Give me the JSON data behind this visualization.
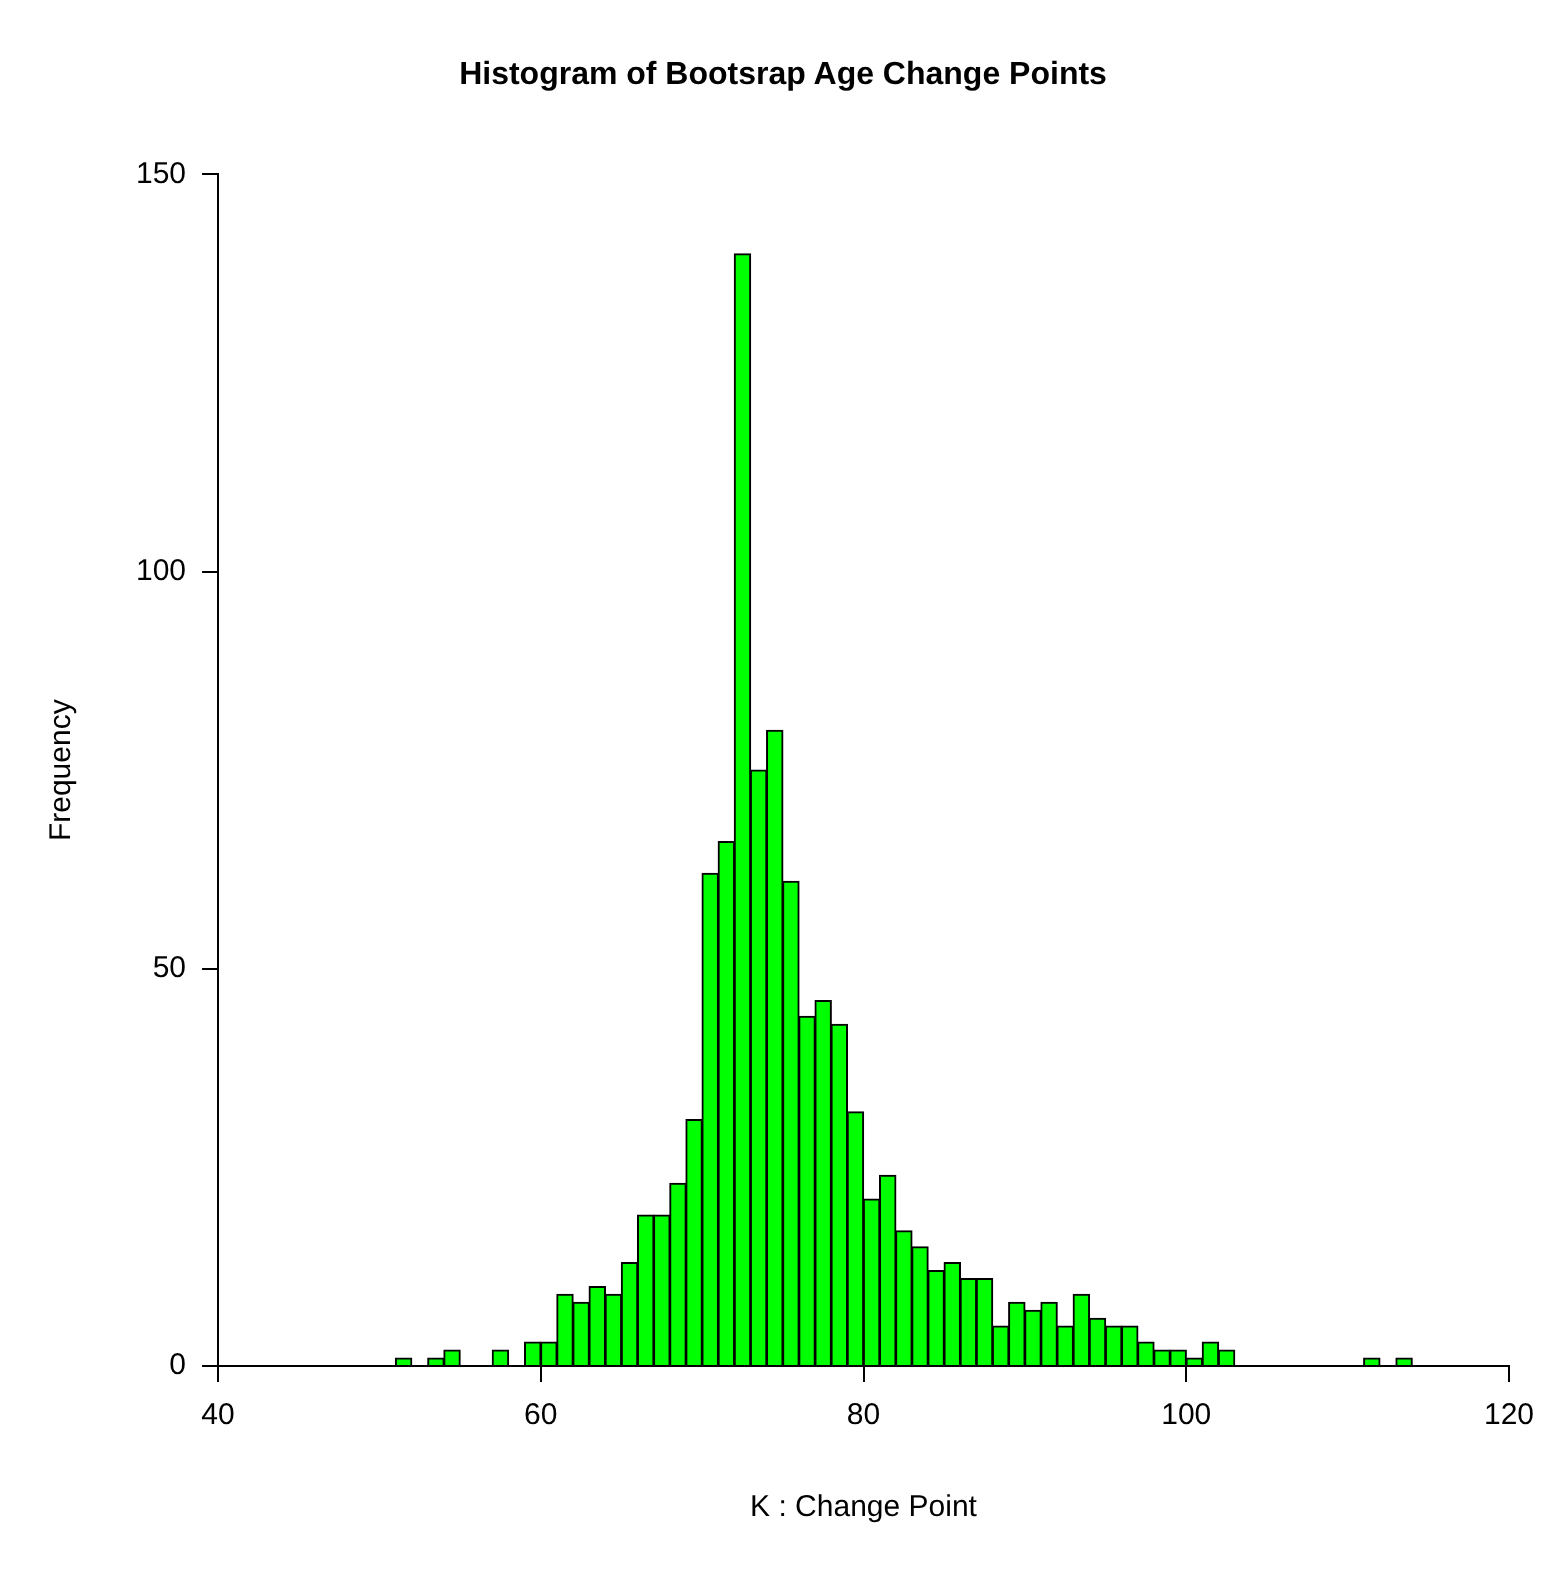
{
  "chart_data": {
    "type": "histogram",
    "title": "Histogram of Bootsrap Age Change Points",
    "xlabel": "K : Change Point",
    "ylabel": "Frequency",
    "bins": [
      51,
      52,
      53,
      54,
      55,
      56,
      57,
      58,
      59,
      60,
      61,
      62,
      63,
      64,
      65,
      66,
      67,
      68,
      69,
      70,
      71,
      72,
      73,
      74,
      75,
      76,
      77,
      78,
      79,
      80,
      81,
      82,
      83,
      84,
      85,
      86,
      87,
      88,
      89,
      90,
      91,
      92,
      93,
      94,
      95,
      96,
      97,
      98,
      99,
      100,
      101,
      102,
      103,
      104,
      105,
      106,
      107,
      108,
      109,
      110,
      111,
      112,
      113,
      114
    ],
    "values": [
      1,
      0,
      1,
      2,
      0,
      0,
      2,
      0,
      3,
      3,
      9,
      8,
      10,
      9,
      13,
      19,
      19,
      23,
      31,
      62,
      66,
      140,
      75,
      80,
      61,
      44,
      46,
      43,
      32,
      21,
      24,
      17,
      15,
      12,
      13,
      11,
      11,
      5,
      8,
      7,
      8,
      5,
      9,
      6,
      5,
      5,
      3,
      2,
      2,
      1,
      3,
      2,
      0,
      0,
      0,
      0,
      0,
      0,
      0,
      0,
      1,
      0,
      1
    ],
    "color": "#00ff00",
    "xlim": [
      40,
      120
    ],
    "xticks": [
      40,
      60,
      80,
      100,
      120
    ],
    "ylim": [
      0,
      150
    ],
    "yticks": [
      0,
      50,
      100,
      150
    ],
    "grid": false,
    "legend": false
  }
}
